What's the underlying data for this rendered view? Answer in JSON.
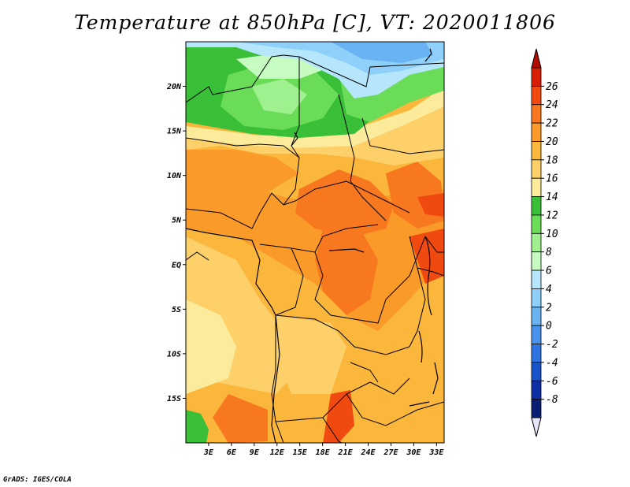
{
  "title": "Temperature at 850hPa [C], VT: 2020011806",
  "credit": "GrADS: IGES/COLA",
  "map": {
    "lon_range": [
      0,
      34
    ],
    "lat_range": [
      -20,
      25
    ],
    "lon_ticks": [
      "3E",
      "6E",
      "9E",
      "12E",
      "15E",
      "18E",
      "21E",
      "24E",
      "27E",
      "30E",
      "33E"
    ],
    "lat_ticks": [
      "20N",
      "15N",
      "10N",
      "5N",
      "EQ",
      "5S",
      "10S",
      "15S"
    ]
  },
  "colorbar": {
    "levels": [
      "26",
      "24",
      "22",
      "20",
      "18",
      "16",
      "14",
      "12",
      "10",
      "8",
      "6",
      "4",
      "2",
      "0",
      "-2",
      "-4",
      "-6",
      "-8"
    ],
    "colors": [
      "#d81e05",
      "#f04a10",
      "#f7781e",
      "#fa9a28",
      "#fbb63c",
      "#fdd06a",
      "#fbeb9b",
      "#39c038",
      "#6bdc58",
      "#9ff08e",
      "#c6fcc2",
      "#b6e6fb",
      "#8fd0fa",
      "#6ab3f3",
      "#4a93ed",
      "#2f74e0",
      "#1a54cc",
      "#0e2fa6",
      "#0a1e72"
    ],
    "top_arrow_color": "#b40a04",
    "bottom_arrow_color": "#e6e6f8"
  }
}
